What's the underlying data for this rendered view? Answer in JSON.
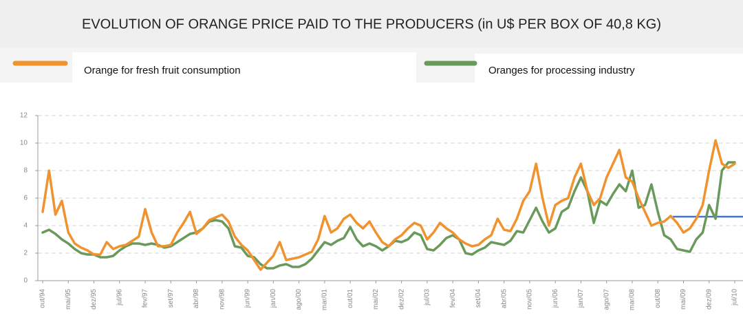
{
  "chart_data": {
    "type": "line",
    "title": "EVOLUTION OF ORANGE PRICE PAID TO THE PRODUCERS (in U$ PER BOX OF 40,8 KG)",
    "categories": [
      "out/94",
      null,
      null,
      null,
      "mai/95",
      null,
      null,
      null,
      "dez/95",
      null,
      null,
      null,
      "jul/96",
      null,
      null,
      null,
      "fev/97",
      null,
      null,
      null,
      "set/97",
      null,
      null,
      null,
      "abr/98",
      null,
      null,
      null,
      "nov/98",
      null,
      null,
      null,
      "jun/99",
      null,
      null,
      null,
      "jan/00",
      null,
      null,
      null,
      "ago/00",
      null,
      null,
      null,
      "mar/01",
      null,
      null,
      null,
      "out/01",
      null,
      null,
      null,
      "mai/02",
      null,
      null,
      null,
      "dez/02",
      null,
      null,
      null,
      "jul/03",
      null,
      null,
      null,
      "fev/04",
      null,
      null,
      null,
      "set/04",
      null,
      null,
      null,
      "abr/05",
      null,
      null,
      null,
      "nov/05",
      null,
      null,
      null,
      "jun/06",
      null,
      null,
      null,
      "jan/07",
      null,
      null,
      null,
      "ago/07",
      null,
      null,
      null,
      "mar/08",
      null,
      null,
      null,
      "out/08",
      null,
      null,
      null,
      "mai/09",
      null,
      null,
      null,
      "dez/09",
      null,
      null,
      null,
      "jul/10"
    ],
    "series": [
      {
        "name": "Orange for fresh fruit consumption",
        "color": "#f0922e",
        "values": [
          5.0,
          8.0,
          4.8,
          5.8,
          3.5,
          2.7,
          2.4,
          2.2,
          1.9,
          1.9,
          2.8,
          2.3,
          2.5,
          2.6,
          2.9,
          3.2,
          5.2,
          3.5,
          2.5,
          2.5,
          2.6,
          3.5,
          4.2,
          5.0,
          3.4,
          3.8,
          4.4,
          4.6,
          4.8,
          4.3,
          3.2,
          2.6,
          2.2,
          1.5,
          0.8,
          1.3,
          1.8,
          2.8,
          1.5,
          1.6,
          1.7,
          1.9,
          2.1,
          3.0,
          4.7,
          3.5,
          3.8,
          4.5,
          4.8,
          4.2,
          3.8,
          4.3,
          3.5,
          2.8,
          2.5,
          3.0,
          3.3,
          3.8,
          4.2,
          4.0,
          3.0,
          3.5,
          4.2,
          3.8,
          3.5,
          3.0,
          2.7,
          2.5,
          2.6,
          3.0,
          3.3,
          4.5,
          3.7,
          3.6,
          4.5,
          5.8,
          6.5,
          8.5,
          6.0,
          4.0,
          5.5,
          5.8,
          6.0,
          7.5,
          8.5,
          6.5,
          5.5,
          6.0,
          7.5,
          8.5,
          9.5,
          7.5,
          7.2,
          6.0,
          5.0,
          4.0,
          4.2,
          4.3,
          4.7,
          4.2,
          3.5,
          3.8,
          4.5,
          5.5,
          8.0,
          10.2,
          8.5,
          8.2,
          8.5
        ]
      },
      {
        "name": "Oranges for processing industry",
        "color": "#6a9a5b",
        "values": [
          3.5,
          3.7,
          3.4,
          3.0,
          2.7,
          2.3,
          2.0,
          1.9,
          1.9,
          1.7,
          1.7,
          1.8,
          2.2,
          2.5,
          2.7,
          2.7,
          2.6,
          2.7,
          2.6,
          2.4,
          2.5,
          2.8,
          3.1,
          3.4,
          3.5,
          3.8,
          4.3,
          4.4,
          4.3,
          3.8,
          2.5,
          2.4,
          1.8,
          1.7,
          1.2,
          0.9,
          0.9,
          1.1,
          1.2,
          1.0,
          1.0,
          1.2,
          1.6,
          2.2,
          2.8,
          2.6,
          2.9,
          3.1,
          3.9,
          3.0,
          2.5,
          2.7,
          2.5,
          2.2,
          2.5,
          2.9,
          2.8,
          3.0,
          3.5,
          3.3,
          2.3,
          2.2,
          2.6,
          3.1,
          3.3,
          3.0,
          2.0,
          1.9,
          2.2,
          2.4,
          2.8,
          2.7,
          2.6,
          2.9,
          3.6,
          3.5,
          4.4,
          5.3,
          4.3,
          3.5,
          3.8,
          5.0,
          5.3,
          6.5,
          7.5,
          6.5,
          4.2,
          5.8,
          5.5,
          6.3,
          7.0,
          6.5,
          8.0,
          5.3,
          5.5,
          7.0,
          5.0,
          3.3,
          3.0,
          2.3,
          2.2,
          2.1,
          3.0,
          3.5,
          5.5,
          4.5,
          8.0,
          8.6,
          8.6
        ]
      }
    ],
    "hline": {
      "value": 4.65,
      "color": "#4472c4"
    },
    "ylim": [
      0,
      12
    ],
    "yticks": [
      0,
      2,
      4,
      6,
      8,
      10,
      12
    ],
    "grid": true
  }
}
